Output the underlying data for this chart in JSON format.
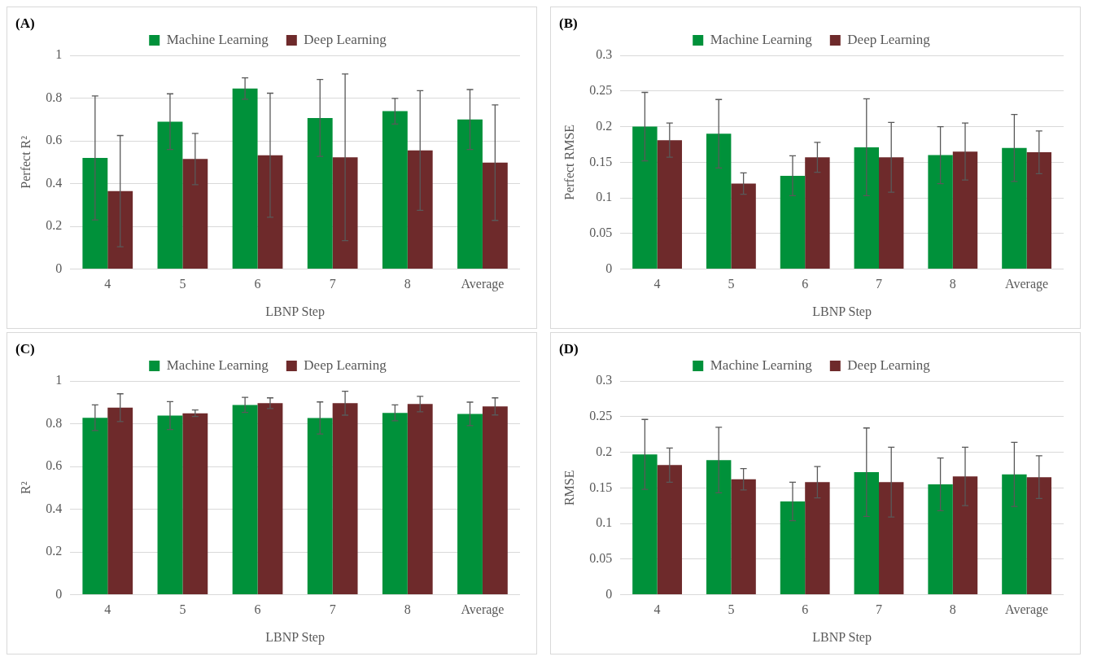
{
  "chart_data": [
    {
      "type": "bar",
      "annotations": [
        "(A)"
      ],
      "xlabel": "LBNP Step",
      "ylabel": "Perfect R²",
      "categories": [
        "4",
        "5",
        "6",
        "7",
        "8",
        "Average"
      ],
      "ylim": [
        0,
        1
      ],
      "yticks": [
        0,
        0.2,
        0.4,
        0.6,
        0.8,
        1
      ],
      "grid": "y",
      "legend": "top",
      "series": [
        {
          "name": "Machine Learning",
          "color": "#00913a",
          "values": [
            0.52,
            0.69,
            0.845,
            0.707,
            0.739,
            0.7
          ],
          "errors": [
            0.29,
            0.13,
            0.05,
            0.18,
            0.06,
            0.14
          ]
        },
        {
          "name": "Deep Learning",
          "color": "#6e2a2b",
          "values": [
            0.365,
            0.515,
            0.533,
            0.523,
            0.555,
            0.498
          ],
          "errors": [
            0.26,
            0.12,
            0.29,
            0.39,
            0.28,
            0.27
          ]
        }
      ]
    },
    {
      "type": "bar",
      "annotations": [
        "(B)"
      ],
      "xlabel": "LBNP Step",
      "ylabel": "Perfect RMSE",
      "categories": [
        "4",
        "5",
        "6",
        "7",
        "8",
        "Average"
      ],
      "ylim": [
        0,
        0.3
      ],
      "yticks": [
        0,
        0.05,
        0.1,
        0.15,
        0.2,
        0.25,
        0.3
      ],
      "grid": "y",
      "legend": "top",
      "series": [
        {
          "name": "Machine Learning",
          "color": "#00913a",
          "values": [
            0.2,
            0.19,
            0.131,
            0.171,
            0.16,
            0.17
          ],
          "errors": [
            0.048,
            0.048,
            0.028,
            0.068,
            0.04,
            0.047
          ]
        },
        {
          "name": "Deep Learning",
          "color": "#6e2a2b",
          "values": [
            0.181,
            0.12,
            0.157,
            0.157,
            0.165,
            0.164
          ],
          "errors": [
            0.024,
            0.015,
            0.021,
            0.049,
            0.04,
            0.03
          ]
        }
      ]
    },
    {
      "type": "bar",
      "annotations": [
        "(C)"
      ],
      "xlabel": "LBNP Step",
      "ylabel": "R²",
      "categories": [
        "4",
        "5",
        "6",
        "7",
        "8",
        "Average"
      ],
      "ylim": [
        0,
        1
      ],
      "yticks": [
        0,
        0.2,
        0.4,
        0.6,
        0.8,
        1
      ],
      "grid": "y",
      "legend": "top",
      "series": [
        {
          "name": "Machine Learning",
          "color": "#00913a",
          "values": [
            0.828,
            0.838,
            0.888,
            0.827,
            0.851,
            0.846
          ],
          "errors": [
            0.06,
            0.065,
            0.035,
            0.075,
            0.037,
            0.055
          ]
        },
        {
          "name": "Deep Learning",
          "color": "#6e2a2b",
          "values": [
            0.875,
            0.849,
            0.896,
            0.896,
            0.892,
            0.881
          ],
          "errors": [
            0.065,
            0.015,
            0.025,
            0.056,
            0.036,
            0.04
          ]
        }
      ]
    },
    {
      "type": "bar",
      "annotations": [
        "(D)"
      ],
      "xlabel": "LBNP Step",
      "ylabel": "RMSE",
      "categories": [
        "4",
        "5",
        "6",
        "7",
        "8",
        "Average"
      ],
      "ylim": [
        0,
        0.3
      ],
      "yticks": [
        0,
        0.05,
        0.1,
        0.15,
        0.2,
        0.25,
        0.3
      ],
      "grid": "y",
      "legend": "top",
      "series": [
        {
          "name": "Machine Learning",
          "color": "#00913a",
          "values": [
            0.197,
            0.189,
            0.131,
            0.172,
            0.155,
            0.169
          ],
          "errors": [
            0.049,
            0.046,
            0.027,
            0.062,
            0.037,
            0.045
          ]
        },
        {
          "name": "Deep Learning",
          "color": "#6e2a2b",
          "values": [
            0.182,
            0.162,
            0.158,
            0.158,
            0.166,
            0.165
          ],
          "errors": [
            0.024,
            0.015,
            0.022,
            0.049,
            0.041,
            0.03
          ]
        }
      ]
    }
  ]
}
